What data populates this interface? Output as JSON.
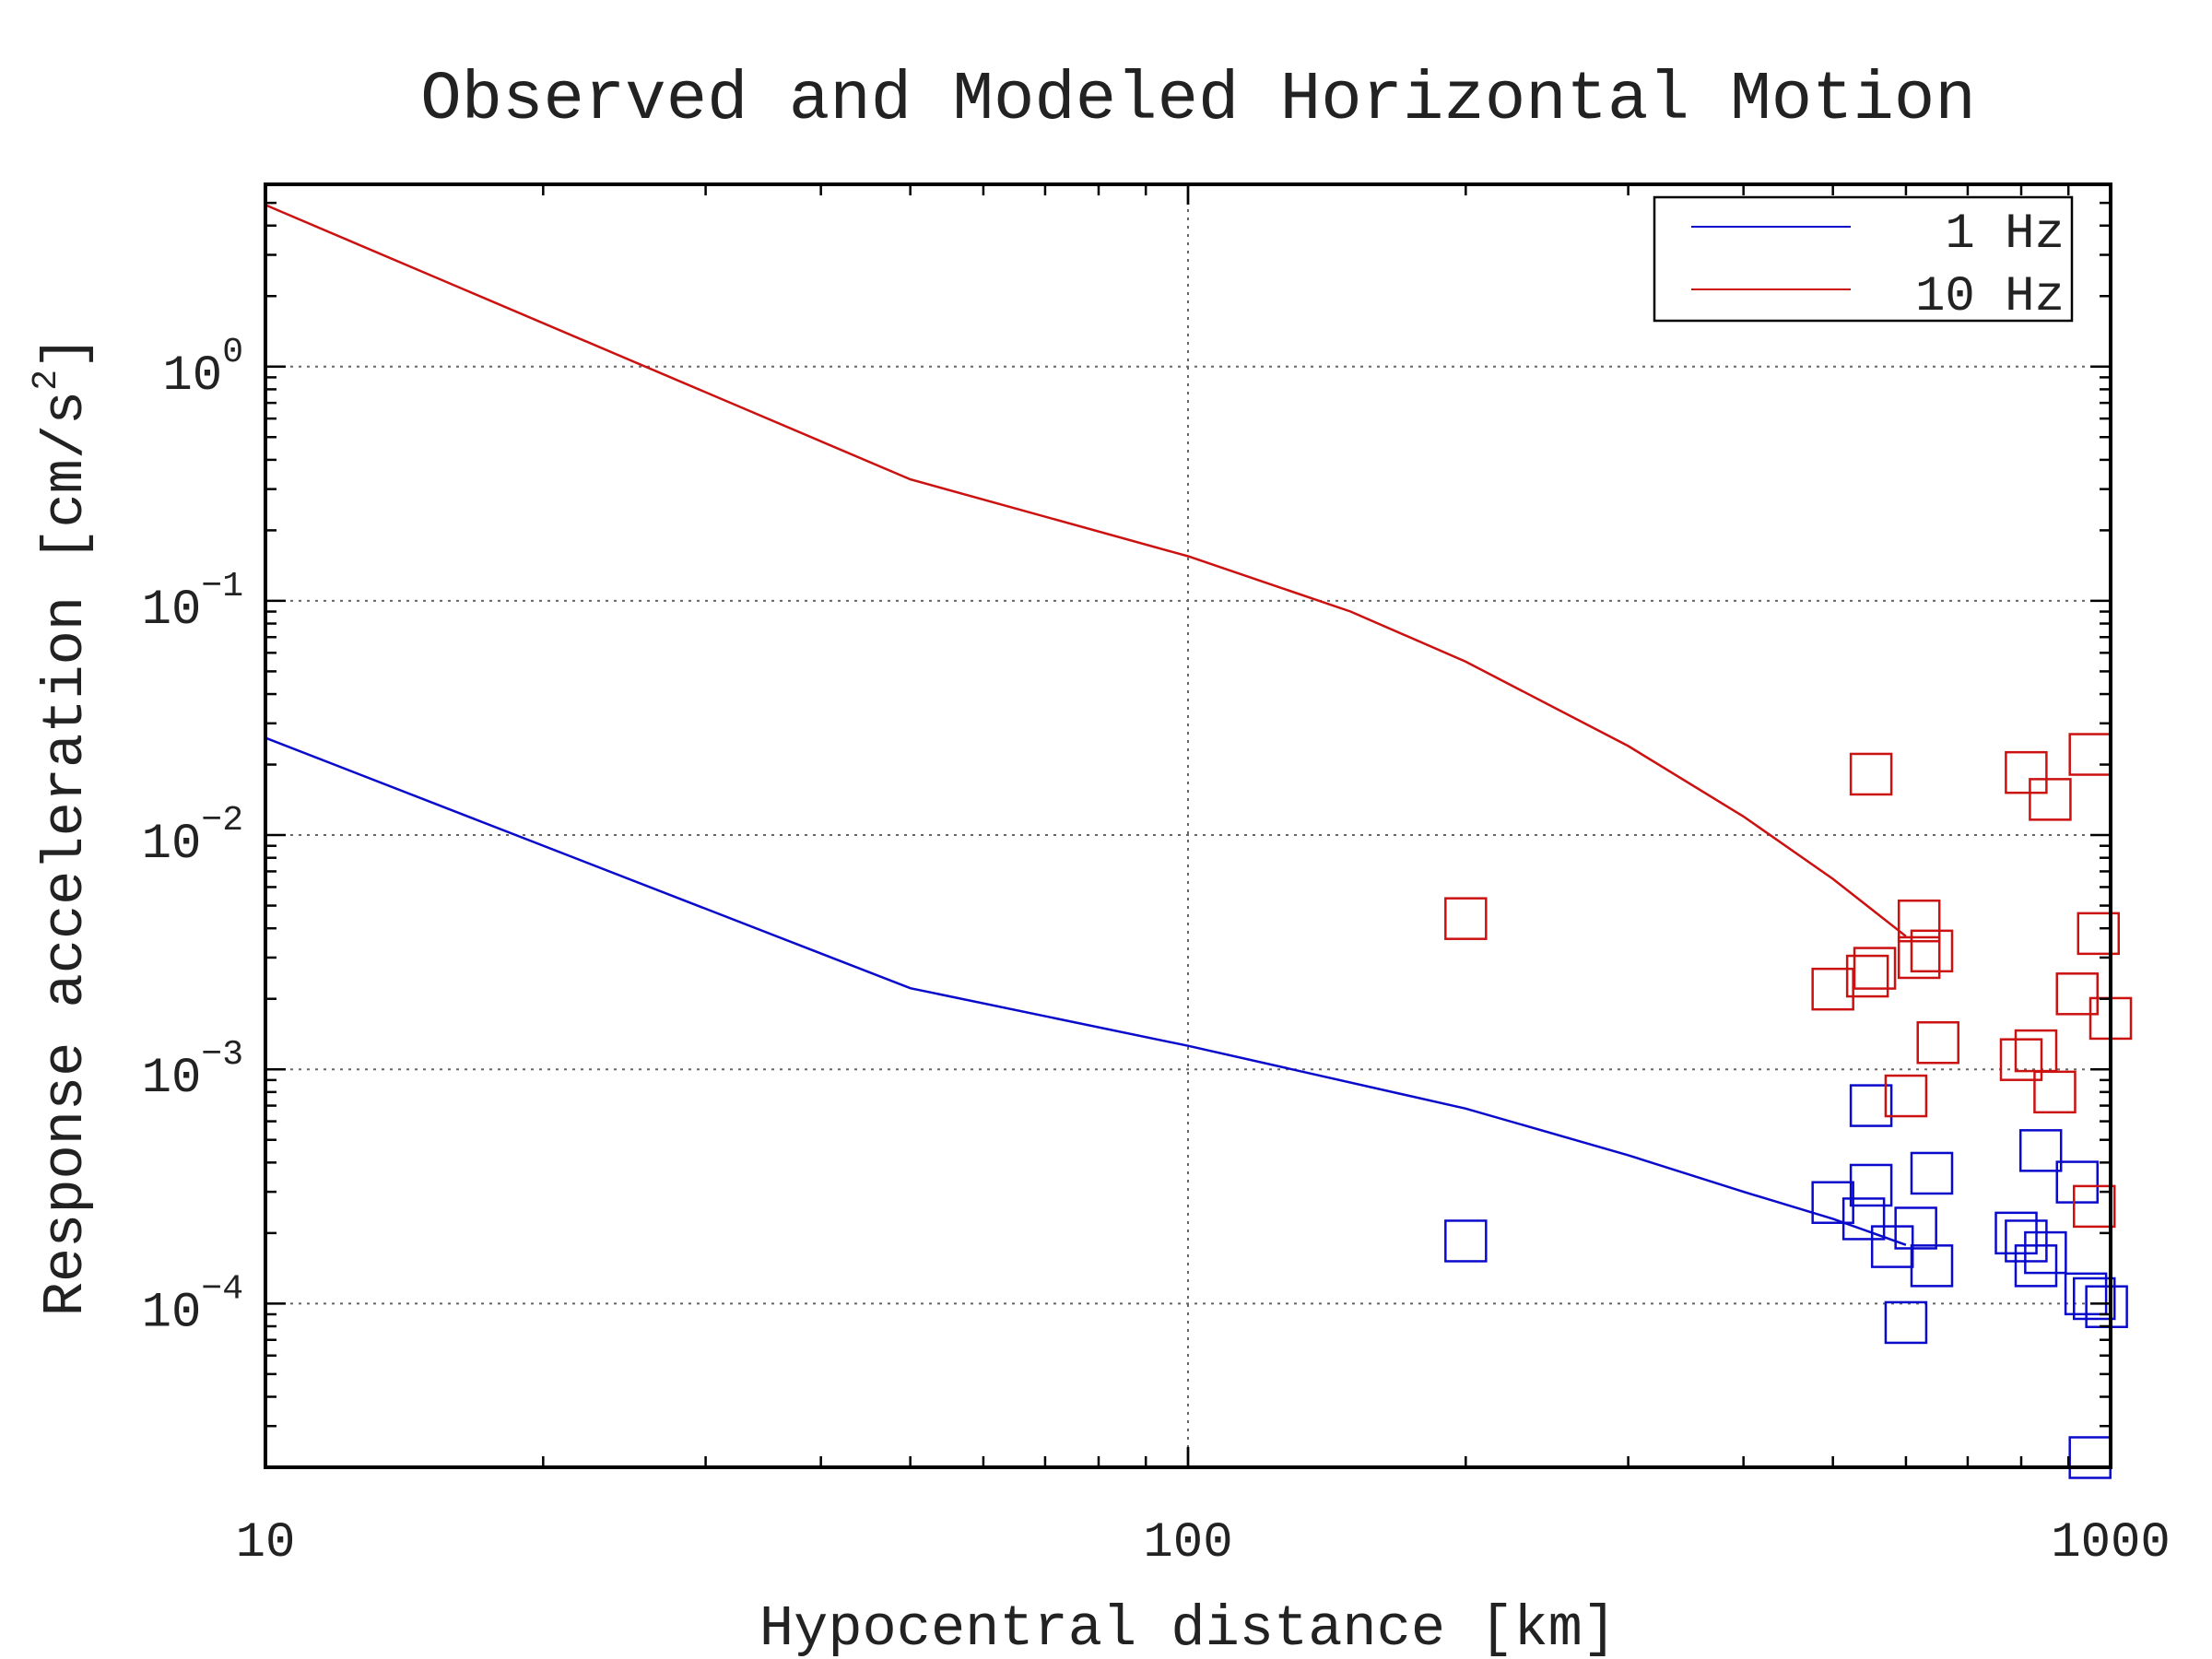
{
  "chart_data": {
    "type": "scatter",
    "title": "Observed and Modeled Horizontal Motion",
    "xlabel": "Hypocentral distance [km]",
    "ylabel": "Response acceleration [cm/s²]",
    "xscale": "log",
    "yscale": "log",
    "xlim": [
      10,
      1000
    ],
    "ylim": [
      2e-05,
      6
    ],
    "x_ticks": [
      10,
      100,
      1000
    ],
    "x_tick_labels": [
      "10",
      "100",
      "1000"
    ],
    "y_ticks": [
      0.0001,
      0.001,
      0.01,
      0.1,
      1
    ],
    "y_tick_labels": [
      {
        "base": "10",
        "exp": "−4"
      },
      {
        "base": "10",
        "exp": "−3"
      },
      {
        "base": "10",
        "exp": "−2"
      },
      {
        "base": "10",
        "exp": "−1"
      },
      {
        "base": "10",
        "exp": "0"
      }
    ],
    "grid": true,
    "legend": {
      "position": "top-right"
    },
    "series": [
      {
        "name": "1 Hz",
        "color": "#0a0acc",
        "model_line": [
          {
            "x": 10,
            "y": 0.026
          },
          {
            "x": 50,
            "y": 0.00222
          },
          {
            "x": 100,
            "y": 0.00126
          },
          {
            "x": 200,
            "y": 0.00068
          },
          {
            "x": 300,
            "y": 0.00043
          },
          {
            "x": 400,
            "y": 0.0003
          },
          {
            "x": 500,
            "y": 0.00023
          },
          {
            "x": 600,
            "y": 0.000178
          }
        ],
        "observed": [
          {
            "x": 200,
            "y": 0.000185
          },
          {
            "x": 500,
            "y": 0.00027
          },
          {
            "x": 540,
            "y": 0.00023
          },
          {
            "x": 550,
            "y": 0.0007
          },
          {
            "x": 550,
            "y": 0.00032
          },
          {
            "x": 580,
            "y": 0.000175
          },
          {
            "x": 600,
            "y": 8.3e-05
          },
          {
            "x": 615,
            "y": 0.00021
          },
          {
            "x": 640,
            "y": 0.00036
          },
          {
            "x": 640,
            "y": 0.000145
          },
          {
            "x": 790,
            "y": 0.0002
          },
          {
            "x": 810,
            "y": 0.000185
          },
          {
            "x": 830,
            "y": 0.000145
          },
          {
            "x": 840,
            "y": 0.00045
          },
          {
            "x": 850,
            "y": 0.000165
          },
          {
            "x": 920,
            "y": 0.00033
          },
          {
            "x": 940,
            "y": 0.00011
          },
          {
            "x": 950,
            "y": 2.2e-05
          },
          {
            "x": 960,
            "y": 0.000105
          },
          {
            "x": 990,
            "y": 9.7e-05
          }
        ]
      },
      {
        "name": "10 Hz",
        "color": "#cc1111",
        "model_line": [
          {
            "x": 10,
            "y": 4.9
          },
          {
            "x": 50,
            "y": 0.33
          },
          {
            "x": 100,
            "y": 0.155
          },
          {
            "x": 150,
            "y": 0.09
          },
          {
            "x": 200,
            "y": 0.055
          },
          {
            "x": 300,
            "y": 0.024
          },
          {
            "x": 400,
            "y": 0.012
          },
          {
            "x": 500,
            "y": 0.0065
          },
          {
            "x": 600,
            "y": 0.0037
          }
        ],
        "observed": [
          {
            "x": 200,
            "y": 0.0044
          },
          {
            "x": 500,
            "y": 0.0022
          },
          {
            "x": 545,
            "y": 0.0025
          },
          {
            "x": 550,
            "y": 0.0182
          },
          {
            "x": 555,
            "y": 0.0027
          },
          {
            "x": 600,
            "y": 0.00077
          },
          {
            "x": 620,
            "y": 0.003
          },
          {
            "x": 620,
            "y": 0.0043
          },
          {
            "x": 640,
            "y": 0.0032
          },
          {
            "x": 650,
            "y": 0.0013
          },
          {
            "x": 800,
            "y": 0.0011
          },
          {
            "x": 810,
            "y": 0.0185
          },
          {
            "x": 830,
            "y": 0.0012
          },
          {
            "x": 860,
            "y": 0.0142
          },
          {
            "x": 870,
            "y": 0.0008
          },
          {
            "x": 920,
            "y": 0.0021
          },
          {
            "x": 950,
            "y": 0.0221
          },
          {
            "x": 960,
            "y": 0.00026
          },
          {
            "x": 970,
            "y": 0.0038
          },
          {
            "x": 1000,
            "y": 0.00165
          }
        ]
      }
    ]
  }
}
